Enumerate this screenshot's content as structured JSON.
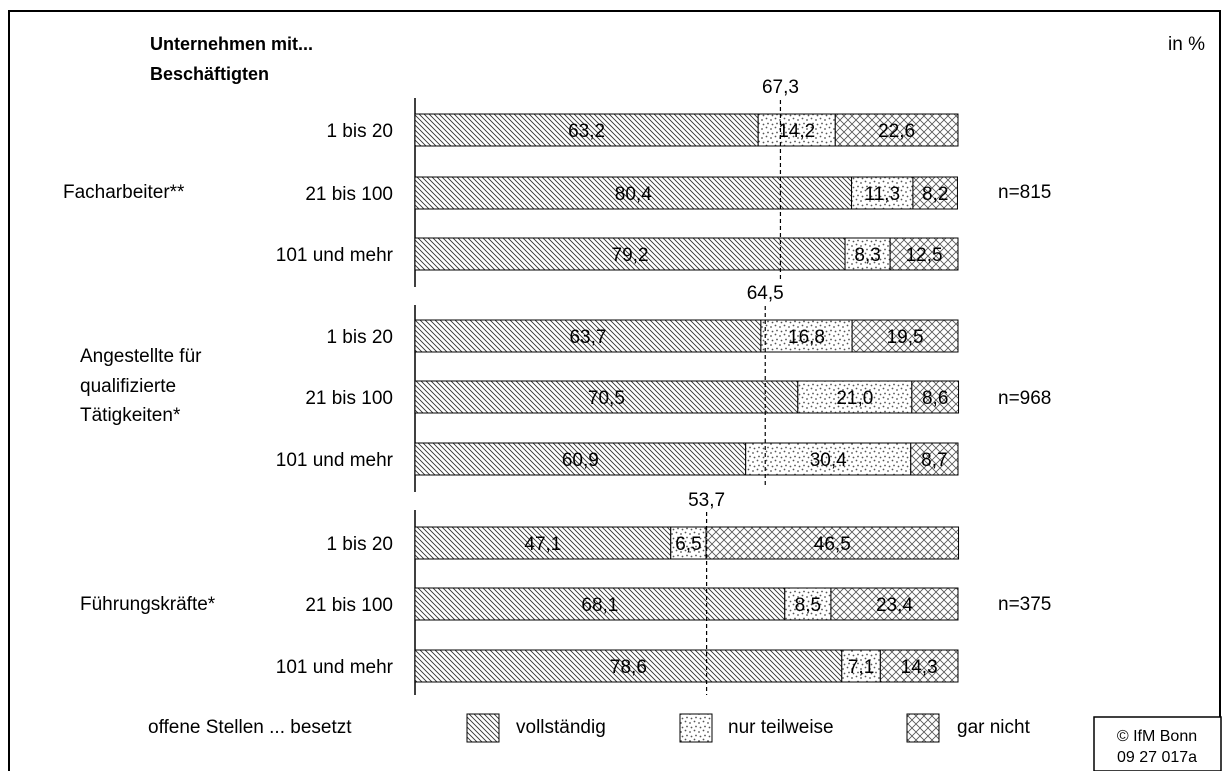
{
  "unit_label": "in %",
  "heading_line1": "Unternehmen mit...",
  "heading_line2": "Beschäftigten",
  "legend": {
    "prefix": "offene Stellen ... besetzt",
    "items": [
      {
        "label": "vollständig",
        "pattern": "diag"
      },
      {
        "label": "nur teilweise",
        "pattern": "dots"
      },
      {
        "label": "gar nicht",
        "pattern": "cross"
      }
    ]
  },
  "copyright_line1": "© IfM Bonn",
  "copyright_line2": "09  27  017a",
  "chart_data": {
    "type": "bar",
    "orientation": "horizontal",
    "stacked": true,
    "xlim": [
      0,
      100
    ],
    "series_names": [
      "vollständig",
      "nur teilweise",
      "gar nicht"
    ],
    "groups": [
      {
        "label_lines": [
          "Facharbeiter**"
        ],
        "n_label": "n=815",
        "reference_value": 67.3,
        "reference_label": "67,3",
        "bars": [
          {
            "category": "1 bis 20",
            "values": [
              63.2,
              14.2,
              22.6
            ],
            "labels": [
              "63,2",
              "14,2",
              "22,6"
            ]
          },
          {
            "category": "21 bis 100",
            "values": [
              80.4,
              11.3,
              8.2
            ],
            "labels": [
              "80,4",
              "11,3",
              "8,2"
            ]
          },
          {
            "category": "101 und mehr",
            "values": [
              79.2,
              8.3,
              12.5
            ],
            "labels": [
              "79,2",
              "8,3",
              "12,5"
            ]
          }
        ]
      },
      {
        "label_lines": [
          "Angestellte für",
          "qualifizierte",
          "Tätigkeiten*"
        ],
        "n_label": "n=968",
        "reference_value": 64.5,
        "reference_label": "64,5",
        "bars": [
          {
            "category": "1 bis 20",
            "values": [
              63.7,
              16.8,
              19.5
            ],
            "labels": [
              "63,7",
              "16,8",
              "19,5"
            ]
          },
          {
            "category": "21 bis 100",
            "values": [
              70.5,
              21.0,
              8.6
            ],
            "labels": [
              "70,5",
              "21,0",
              "8,6"
            ]
          },
          {
            "category": "101 und mehr",
            "values": [
              60.9,
              30.4,
              8.7
            ],
            "labels": [
              "60,9",
              "30,4",
              "8,7"
            ]
          }
        ]
      },
      {
        "label_lines": [
          "Führungskräfte*"
        ],
        "n_label": "n=375",
        "reference_value": 53.7,
        "reference_label": "53,7",
        "bars": [
          {
            "category": "1 bis 20",
            "values": [
              47.1,
              6.5,
              46.5
            ],
            "labels": [
              "47,1",
              "6,5",
              "46,5"
            ]
          },
          {
            "category": "21 bis 100",
            "values": [
              68.1,
              8.5,
              23.4
            ],
            "labels": [
              "68,1",
              "8,5",
              "23,4"
            ]
          },
          {
            "category": "101 und mehr",
            "values": [
              78.6,
              7.1,
              14.3
            ],
            "labels": [
              "78,6",
              "7,1",
              "14,3"
            ]
          }
        ]
      }
    ]
  }
}
